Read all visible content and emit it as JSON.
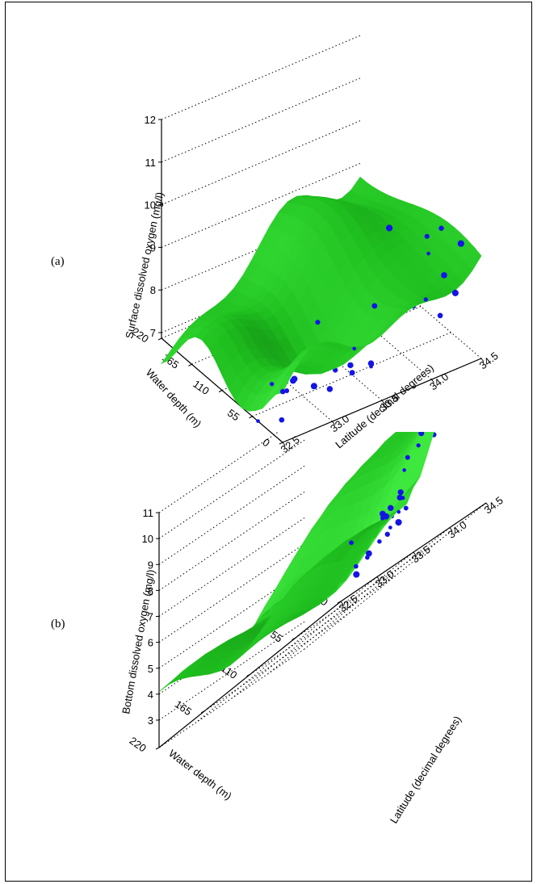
{
  "figure": {
    "colors": {
      "surface": "#1fbf1f",
      "surface_dark": "#0a6b0a",
      "surface_light": "#3ee83e",
      "points": "#1414e6"
    }
  },
  "chart_data": [
    {
      "id": "a",
      "type": "surface3d",
      "panel_label": "(a)",
      "title": "",
      "zlabel": "Surface dissolved oxygen (mg/l)",
      "xlabel": "Latitude (decimal degrees)",
      "ylabel": "Water depth (m)",
      "x_ticks": [
        "32.5",
        "33.0",
        "33.5",
        "34.0",
        "34.5"
      ],
      "y_ticks": [
        "0",
        "55",
        "110",
        "165",
        "220"
      ],
      "z_ticks": [
        "7",
        "8",
        "9",
        "10",
        "11",
        "12"
      ],
      "xlim": [
        32.5,
        34.5
      ],
      "ylim": [
        0,
        220
      ],
      "zlim": [
        6,
        12
      ],
      "grid": true,
      "series": [
        {
          "kind": "fitted-surface"
        },
        {
          "kind": "observations"
        }
      ]
    },
    {
      "id": "b",
      "type": "surface3d",
      "panel_label": "(b)",
      "title": "",
      "zlabel": "Bottom dissolved oxygen (mg/l)",
      "xlabel": "Latitude (decimal degrees)",
      "ylabel": "Water depth (m)",
      "x_ticks": [
        "32.5",
        "33.0",
        "33.5",
        "34.0",
        "34.5"
      ],
      "y_ticks": [
        "0",
        "55",
        "110",
        "165",
        "220"
      ],
      "z_ticks": [
        "3",
        "4",
        "5",
        "6",
        "7",
        "8",
        "9",
        "10",
        "11"
      ],
      "xlim": [
        32.5,
        34.5
      ],
      "ylim": [
        0,
        220
      ],
      "zlim": [
        2,
        11
      ],
      "grid": true,
      "series": [
        {
          "kind": "fitted-surface"
        },
        {
          "kind": "observations"
        }
      ]
    }
  ]
}
